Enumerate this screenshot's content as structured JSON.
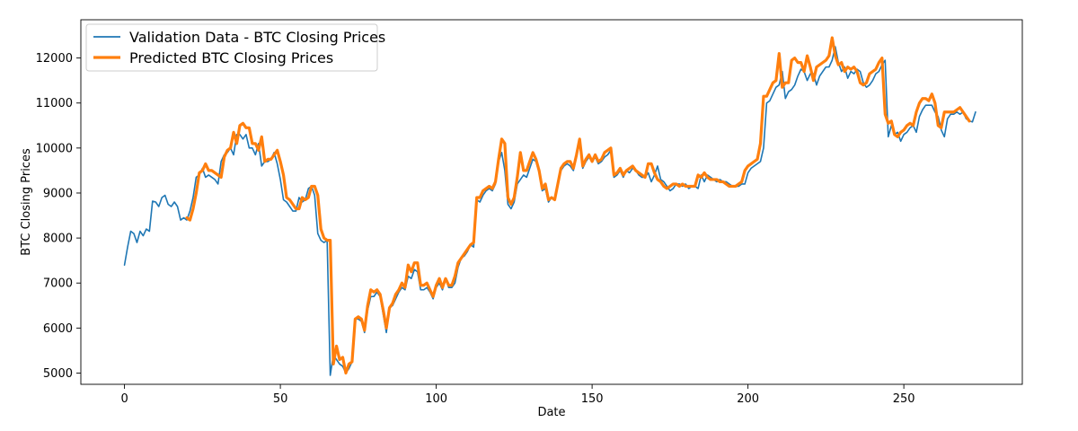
{
  "chart_data": {
    "type": "line",
    "title": "",
    "xlabel": "Date",
    "ylabel": "BTC Closing Prices",
    "xlim": [
      -14,
      288
    ],
    "ylim": [
      4750,
      12850
    ],
    "x_ticks": [
      0,
      50,
      100,
      150,
      200,
      250
    ],
    "y_ticks": [
      5000,
      6000,
      7000,
      8000,
      9000,
      10000,
      11000,
      12000
    ],
    "x_tick_labels": [
      "0",
      "50",
      "100",
      "150",
      "200",
      "250"
    ],
    "y_tick_labels": [
      "5000",
      "6000",
      "7000",
      "8000",
      "9000",
      "10000",
      "11000",
      "12000"
    ],
    "grid": false,
    "legend_position": "top-left",
    "series": [
      {
        "name": "Validation Data - BTC Closing Prices",
        "color": "#1f77b4",
        "x0": 0,
        "values": [
          7400,
          7800,
          8150,
          8100,
          7900,
          8150,
          8050,
          8200,
          8150,
          8820,
          8800,
          8700,
          8900,
          8950,
          8750,
          8700,
          8800,
          8700,
          8400,
          8450,
          8400,
          8600,
          8900,
          9350,
          9400,
          9550,
          9350,
          9400,
          9350,
          9300,
          9200,
          9700,
          9850,
          9900,
          10000,
          9850,
          10300,
          10300,
          10200,
          10300,
          10000,
          10000,
          9850,
          10100,
          9600,
          9700,
          9700,
          9750,
          9900,
          9650,
          9300,
          8850,
          8800,
          8700,
          8600,
          8600,
          8900,
          8800,
          8850,
          9100,
          9150,
          8950,
          8100,
          7950,
          7900,
          7950,
          4950,
          5400,
          5300,
          5200,
          5150,
          5000,
          5100,
          5250,
          6200,
          6200,
          6150,
          5900,
          6400,
          6700,
          6700,
          6800,
          6700,
          6300,
          5900,
          6450,
          6500,
          6650,
          6800,
          6900,
          6850,
          7150,
          7100,
          7300,
          7250,
          6850,
          6850,
          6900,
          6800,
          6650,
          6900,
          7000,
          6850,
          7100,
          6900,
          6900,
          7000,
          7350,
          7550,
          7600,
          7700,
          7850,
          7800,
          8850,
          8800,
          8950,
          9050,
          9100,
          9050,
          9200,
          9700,
          9900,
          9500,
          8750,
          8650,
          8800,
          9200,
          9300,
          9400,
          9350,
          9550,
          9750,
          9700,
          9450,
          9050,
          9100,
          8800,
          8900,
          8850,
          9200,
          9500,
          9600,
          9650,
          9600,
          9500,
          9800,
          10200,
          9550,
          9700,
          9800,
          9700,
          9800,
          9650,
          9700,
          9800,
          9850,
          9950,
          9350,
          9400,
          9500,
          9350,
          9500,
          9450,
          9550,
          9500,
          9400,
          9350,
          9350,
          9450,
          9250,
          9400,
          9600,
          9300,
          9250,
          9150,
          9050,
          9100,
          9200,
          9200,
          9150,
          9200,
          9100,
          9150,
          9150,
          9100,
          9400,
          9250,
          9400,
          9350,
          9300,
          9250,
          9300,
          9250,
          9250,
          9200,
          9150,
          9150,
          9150,
          9200,
          9200,
          9450,
          9550,
          9600,
          9650,
          9700,
          10000,
          11000,
          11050,
          11200,
          11350,
          11400,
          11700,
          11100,
          11250,
          11300,
          11400,
          11600,
          11750,
          11700,
          11500,
          11650,
          11650,
          11400,
          11600,
          11700,
          11800,
          11800,
          11950,
          12250,
          11900,
          11700,
          11800,
          11550,
          11700,
          11650,
          11750,
          11700,
          11450,
          11350,
          11400,
          11500,
          11650,
          11700,
          11850,
          11950,
          10250,
          10500,
          10300,
          10350,
          10150,
          10300,
          10350,
          10450,
          10500,
          10350,
          10700,
          10850,
          10950,
          10950,
          10950,
          10800,
          10700,
          10400,
          10250,
          10650,
          10750,
          10750,
          10800,
          10750,
          10800,
          10650,
          10600,
          10580,
          10800
        ]
      },
      {
        "name": "Predicted BTC Closing Prices",
        "color": "#ff7f0e",
        "x0": 20,
        "values": [
          8450,
          8400,
          8650,
          9000,
          9450,
          9500,
          9650,
          9500,
          9500,
          9450,
          9400,
          9350,
          9800,
          9950,
          10000,
          10350,
          10100,
          10500,
          10550,
          10450,
          10450,
          10100,
          10100,
          9950,
          10250,
          9700,
          9750,
          9750,
          9850,
          9950,
          9700,
          9400,
          8900,
          8850,
          8750,
          8650,
          8650,
          8900,
          8850,
          8900,
          9150,
          9150,
          8950,
          8200,
          8000,
          7950,
          7950,
          5200,
          5600,
          5300,
          5350,
          5000,
          5200,
          5250,
          6200,
          6250,
          6200,
          5950,
          6500,
          6850,
          6800,
          6850,
          6750,
          6400,
          6000,
          6450,
          6550,
          6750,
          6850,
          7000,
          6900,
          7400,
          7250,
          7450,
          7450,
          6950,
          6950,
          7000,
          6850,
          6700,
          6950,
          7100,
          6900,
          7100,
          6950,
          6950,
          7150,
          7450,
          7550,
          7650,
          7750,
          7850,
          7900,
          8900,
          8900,
          9050,
          9100,
          9150,
          9100,
          9250,
          9750,
          10200,
          10100,
          8900,
          8750,
          8900,
          9350,
          9900,
          9500,
          9500,
          9700,
          9900,
          9750,
          9500,
          9100,
          9200,
          8850,
          8900,
          8850,
          9200,
          9550,
          9650,
          9700,
          9700,
          9550,
          9850,
          10200,
          9600,
          9750,
          9850,
          9700,
          9850,
          9700,
          9750,
          9900,
          9950,
          10000,
          9400,
          9450,
          9550,
          9400,
          9500,
          9550,
          9600,
          9500,
          9450,
          9400,
          9350,
          9650,
          9650,
          9450,
          9300,
          9250,
          9150,
          9100,
          9150,
          9200,
          9200,
          9150,
          9200,
          9150,
          9150,
          9150,
          9150,
          9400,
          9350,
          9450,
          9350,
          9300,
          9300,
          9300,
          9250,
          9250,
          9200,
          9150,
          9150,
          9150,
          9200,
          9250,
          9500,
          9600,
          9650,
          9700,
          9750,
          10100,
          11150,
          11150,
          11300,
          11450,
          11500,
          12100,
          11350,
          11450,
          11450,
          11950,
          12000,
          11900,
          11900,
          11700,
          12050,
          11800,
          11500,
          11800,
          11850,
          11900,
          11950,
          12050,
          12450,
          12050,
          11850,
          11900,
          11700,
          11800,
          11750,
          11800,
          11700,
          11450,
          11400,
          11450,
          11650,
          11700,
          11750,
          11900,
          12000,
          10750,
          10550,
          10600,
          10300,
          10250,
          10350,
          10400,
          10500,
          10550,
          10500,
          10800,
          11000,
          11100,
          11100,
          11050,
          11200,
          11000,
          10500,
          10450,
          10800,
          10800,
          10800,
          10800,
          10850,
          10900,
          10800,
          10700,
          10600
        ]
      }
    ]
  }
}
